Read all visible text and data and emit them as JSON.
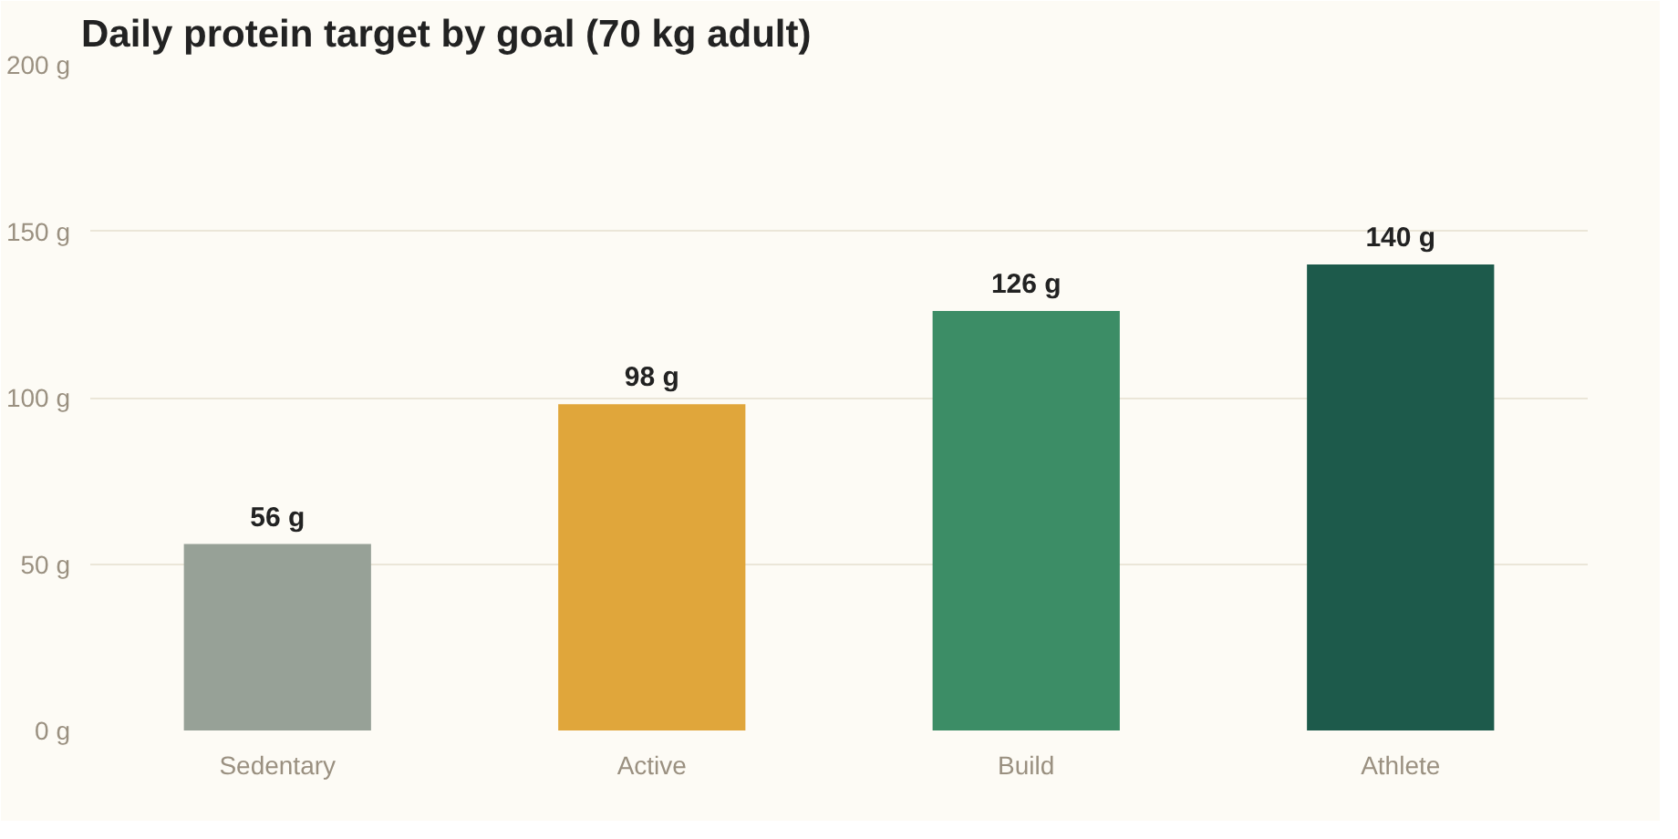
{
  "chart_data": {
    "type": "bar",
    "title": "Daily protein target by goal (70 kg adult)",
    "categories": [
      "Sedentary",
      "Active",
      "Build",
      "Athlete"
    ],
    "values": [
      56,
      98,
      126,
      140
    ],
    "colors": [
      "#97a197",
      "#e0a63b",
      "#3c8d66",
      "#1d5a4b"
    ],
    "value_labels": [
      "56 g",
      "98 g",
      "126 g",
      "140 g"
    ],
    "ylim": [
      0,
      200
    ],
    "yticks": [
      {
        "value": 0,
        "label": "0 g"
      },
      {
        "value": 50,
        "label": "50 g"
      },
      {
        "value": 100,
        "label": "100 g"
      },
      {
        "value": 150,
        "label": "150 g"
      },
      {
        "value": 200,
        "label": "200 g"
      }
    ],
    "grid": "y"
  }
}
